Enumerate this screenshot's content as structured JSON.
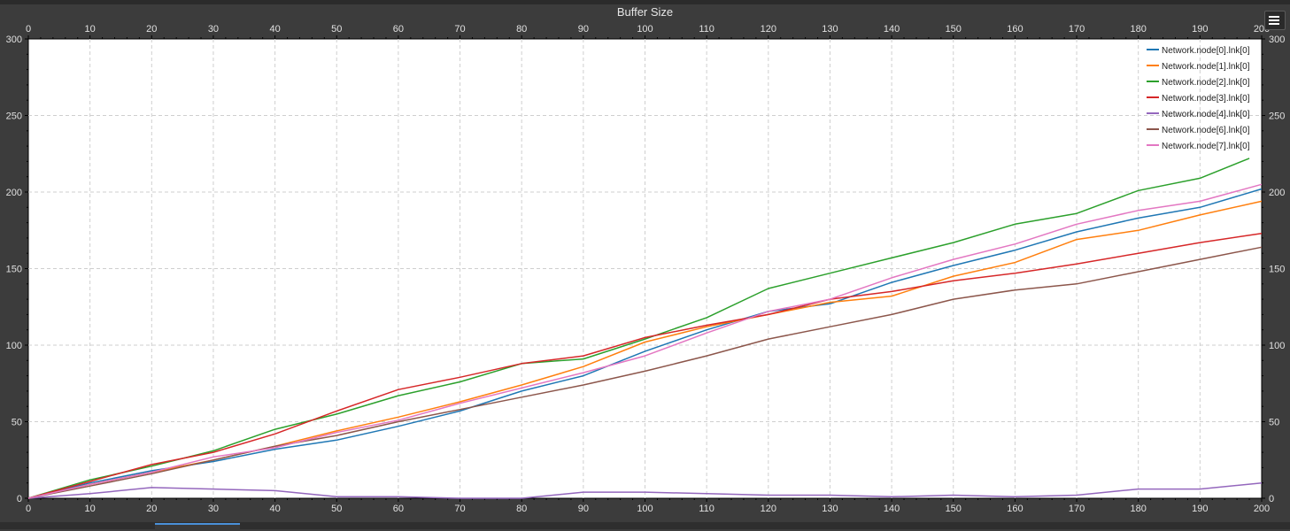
{
  "chart_data": {
    "type": "line",
    "title": "Buffer Size",
    "xlim": [
      0,
      200
    ],
    "ylim": [
      0,
      300
    ],
    "x_ticks": [
      0,
      10,
      20,
      30,
      40,
      50,
      60,
      70,
      80,
      90,
      100,
      110,
      120,
      130,
      140,
      150,
      160,
      170,
      180,
      190,
      200
    ],
    "y_ticks": [
      0,
      50,
      100,
      150,
      200,
      250,
      300
    ],
    "grid": true,
    "legend_position": "top-right",
    "series": [
      {
        "name": "Network.node[0].lnk[0]",
        "color": "#1f77b4",
        "x": [
          0,
          10,
          20,
          30,
          40,
          50,
          60,
          70,
          80,
          90,
          100,
          110,
          120,
          130,
          140,
          150,
          160,
          170,
          180,
          190,
          200
        ],
        "y": [
          0,
          10,
          18,
          24,
          32,
          38,
          47,
          57,
          70,
          80,
          96,
          110,
          122,
          127,
          141,
          152,
          162,
          174,
          183,
          190,
          202
        ]
      },
      {
        "name": "Network.node[1].lnk[0]",
        "color": "#ff7f0e",
        "x": [
          0,
          10,
          20,
          30,
          40,
          50,
          60,
          70,
          80,
          90,
          100,
          110,
          120,
          130,
          140,
          150,
          160,
          170,
          180,
          190,
          200
        ],
        "y": [
          0,
          9,
          17,
          25,
          34,
          44,
          53,
          63,
          74,
          86,
          102,
          112,
          120,
          128,
          132,
          145,
          154,
          169,
          175,
          185,
          194
        ]
      },
      {
        "name": "Network.node[2].lnk[0]",
        "color": "#2ca02c",
        "x": [
          0,
          10,
          20,
          30,
          40,
          50,
          60,
          70,
          80,
          90,
          100,
          110,
          120,
          130,
          140,
          150,
          160,
          170,
          180,
          190,
          198
        ],
        "y": [
          0,
          12,
          21,
          31,
          45,
          55,
          67,
          76,
          88,
          91,
          104,
          118,
          137,
          147,
          157,
          167,
          179,
          186,
          201,
          209,
          222
        ]
      },
      {
        "name": "Network.node[3].lnk[0]",
        "color": "#d62728",
        "x": [
          0,
          10,
          20,
          30,
          40,
          50,
          60,
          70,
          80,
          90,
          100,
          110,
          120,
          130,
          140,
          150,
          160,
          170,
          180,
          190,
          200
        ],
        "y": [
          0,
          11,
          22,
          30,
          42,
          57,
          71,
          79,
          88,
          93,
          105,
          113,
          120,
          130,
          135,
          142,
          147,
          153,
          160,
          167,
          173
        ]
      },
      {
        "name": "Network.node[4].lnk[0]",
        "color": "#9467bd",
        "x": [
          0,
          10,
          20,
          30,
          40,
          50,
          60,
          70,
          80,
          90,
          100,
          110,
          120,
          130,
          140,
          150,
          160,
          170,
          180,
          190,
          200
        ],
        "y": [
          0,
          3,
          7,
          6,
          5,
          1,
          1,
          0,
          0,
          4,
          4,
          3,
          2,
          2,
          1,
          2,
          1,
          2,
          6,
          6,
          10
        ]
      },
      {
        "name": "Network.node[6].lnk[0]",
        "color": "#8c564b",
        "x": [
          0,
          10,
          20,
          30,
          40,
          50,
          60,
          70,
          80,
          90,
          100,
          110,
          120,
          130,
          140,
          150,
          160,
          170,
          180,
          190,
          200
        ],
        "y": [
          0,
          8,
          16,
          25,
          34,
          41,
          50,
          58,
          66,
          74,
          83,
          93,
          104,
          112,
          120,
          130,
          136,
          140,
          148,
          156,
          164
        ]
      },
      {
        "name": "Network.node[7].lnk[0]",
        "color": "#e377c2",
        "x": [
          0,
          10,
          20,
          30,
          40,
          50,
          60,
          70,
          80,
          90,
          100,
          110,
          120,
          130,
          140,
          150,
          160,
          170,
          180,
          190,
          200
        ],
        "y": [
          0,
          9,
          17,
          27,
          33,
          43,
          51,
          62,
          72,
          82,
          93,
          108,
          122,
          130,
          144,
          156,
          166,
          179,
          188,
          194,
          205
        ]
      }
    ]
  },
  "legend_button": {
    "icon": "legend-list-icon"
  }
}
